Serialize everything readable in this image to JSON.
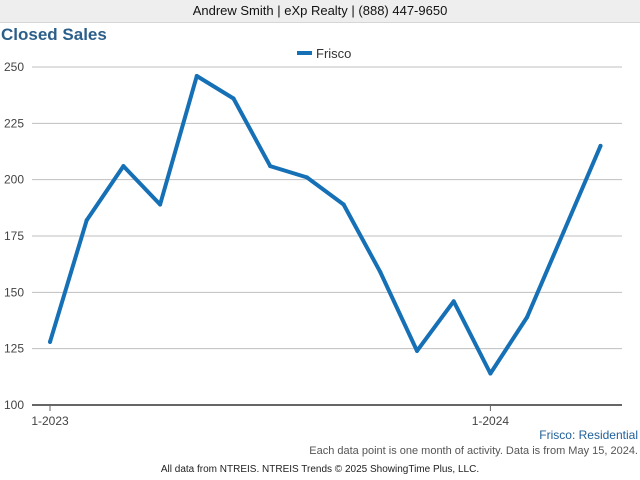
{
  "header": {
    "agent_text": "Andrew Smith | eXp Realty | (888) 447-9650"
  },
  "colors": {
    "series": "#1670b5",
    "grid": "#bfbfbf",
    "title": "#2b5f8a",
    "source": "#1f5f99"
  },
  "chart_data": {
    "type": "line",
    "title": "Closed Sales",
    "x": [
      "2023-01",
      "2023-02",
      "2023-03",
      "2023-04",
      "2023-05",
      "2023-06",
      "2023-07",
      "2023-08",
      "2023-09",
      "2023-10",
      "2023-11",
      "2023-12",
      "2024-01",
      "2024-02",
      "2024-03",
      "2024-04"
    ],
    "x_tick_labels": [
      {
        "index": 0,
        "label": "1-2023"
      },
      {
        "index": 12,
        "label": "1-2024"
      }
    ],
    "series": [
      {
        "name": "Frisco",
        "values": [
          128,
          182,
          206,
          189,
          246,
          236,
          206,
          201,
          189,
          159,
          124,
          146,
          114,
          139,
          177,
          215
        ]
      }
    ],
    "ylim": [
      100,
      250
    ],
    "yticks": [
      100,
      125,
      150,
      175,
      200,
      225,
      250
    ],
    "grid": true,
    "legend": "top-center"
  },
  "footer": {
    "source": "Frisco: Residential",
    "note": "Each data point is one month of activity. Data is from May 15, 2024.",
    "credit": "All data from NTREIS. NTREIS Trends © 2025 ShowingTime Plus, LLC."
  }
}
